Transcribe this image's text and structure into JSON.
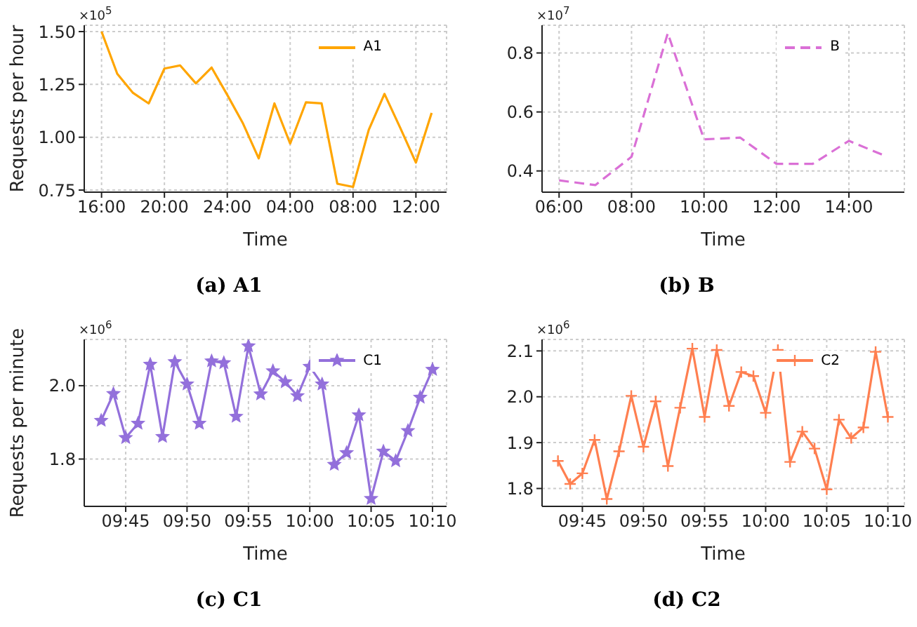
{
  "chart_data": [
    {
      "type": "line",
      "title": "(a) A1",
      "xlabel": "Time",
      "ylabel": "Requests per hour",
      "annotations": [
        "×10$^{5}$"
      ],
      "x": [
        "--01-01T16:00",
        "--01-01T17:00",
        "--01-01T18:00",
        "--01-01T19:00",
        "--01-01T20:00",
        "--01-01T21:00",
        "--01-01T22:00",
        "--01-01T23:00",
        "--01-02T00:00",
        "--01-02T01:00",
        "--01-02T02:00",
        "--01-02T03:00",
        "--01-02T04:00",
        "--01-02T05:00",
        "--01-02T06:00",
        "--01-02T07:00",
        "--01-02T08:00",
        "--01-02T09:00",
        "--01-02T10:00",
        "--01-02T11:00",
        "--01-02T12:00",
        "--01-02T13:00"
      ],
      "series": [
        {
          "name": "A1",
          "color": "#ffa500",
          "values": [
            1.5,
            1.3,
            1.21,
            1.16,
            1.325,
            1.34,
            1.255,
            1.33,
            1.2,
            1.065,
            0.9,
            1.16,
            0.97,
            1.165,
            1.16,
            0.78,
            0.765,
            1.035,
            1.205,
            1.045,
            0.88,
            1.115
          ]
        }
      ],
      "xlim": [
        "--01-01T14:54",
        "--01-02T13:57"
      ],
      "xticks": [
        {
          "value": "--01-01T16:00",
          "label": "16:00"
        },
        {
          "value": "--01-01T20:00",
          "label": "20:00"
        },
        {
          "value": "--01-02T00:00",
          "label": "24:00"
        },
        {
          "value": "--01-02T04:00",
          "label": "04:00"
        },
        {
          "value": "--01-02T08:00",
          "label": "08:00"
        },
        {
          "value": "--01-02T12:00",
          "label": "12:00"
        }
      ],
      "ylim": [
        0.74,
        1.53
      ],
      "yticks": [
        {
          "value": 0.75,
          "label": "0.75"
        },
        {
          "value": 1.0,
          "label": "1.00"
        },
        {
          "value": 1.25,
          "label": "1.25"
        },
        {
          "value": 1.5,
          "label": "1.50"
        }
      ],
      "grid": true,
      "legend": "top right",
      "marker": "none",
      "line_style": "solid"
    },
    {
      "type": "line",
      "title": "(b) B",
      "xlabel": "Time",
      "annotations": [
        "×10$^{7}$"
      ],
      "x": [
        6,
        7,
        8,
        9,
        10,
        11,
        12,
        13,
        14,
        15
      ],
      "series": [
        {
          "name": "B",
          "color": "#da70d6",
          "values": [
            0.368,
            0.352,
            0.448,
            0.867,
            0.507,
            0.513,
            0.424,
            0.424,
            0.502,
            0.451
          ]
        }
      ],
      "xlim": [
        5.53,
        15.53
      ],
      "xticks": [
        {
          "value": 6,
          "label": "06:00"
        },
        {
          "value": 8,
          "label": "08:00"
        },
        {
          "value": 10,
          "label": "10:00"
        },
        {
          "value": 12,
          "label": "12:00"
        },
        {
          "value": 14,
          "label": "14:00"
        }
      ],
      "ylim": [
        0.328,
        0.894
      ],
      "yticks": [
        0.4,
        0.6,
        0.8
      ],
      "grid": true,
      "legend": "top right",
      "marker": "none",
      "line_style": "dashed"
    },
    {
      "type": "line",
      "title": "(c) C1",
      "xlabel": "Time",
      "ylabel": "Requests per minute",
      "annotations": [
        "×10$^{6}$"
      ],
      "x": [
        9.7167,
        9.7333,
        9.75,
        9.7667,
        9.7833,
        9.8,
        9.8167,
        9.8333,
        9.85,
        9.8667,
        9.8833,
        9.9,
        9.9167,
        9.9333,
        9.95,
        9.9667,
        9.9833,
        10,
        10.0167,
        10.0333,
        10.05,
        10.0667,
        10.0833,
        10.1,
        10.1167,
        10.1333,
        10.15,
        10.1667
      ],
      "series": [
        {
          "name": "C1",
          "color": "#9370db",
          "values": [
            1.905,
            1.978,
            1.858,
            1.897,
            2.058,
            1.861,
            2.065,
            2.004,
            1.897,
            2.067,
            2.062,
            1.916,
            2.108,
            1.977,
            2.04,
            2.01,
            1.972,
            2.052,
            2.004,
            1.785,
            1.817,
            1.92,
            1.692,
            1.821,
            1.795,
            1.877,
            1.968,
            2.044
          ]
        }
      ],
      "xlim": [
        9.6937,
        10.1858
      ],
      "xticks": [
        {
          "value": 9.75,
          "label": "09:45"
        },
        {
          "value": 9.8333,
          "label": "09:50"
        },
        {
          "value": 9.9167,
          "label": "09:55"
        },
        {
          "value": 10,
          "label": "10:00"
        },
        {
          "value": 10.0833,
          "label": "10:05"
        },
        {
          "value": 10.1667,
          "label": "10:10"
        }
      ],
      "ylim": [
        1.671,
        2.126
      ],
      "yticks": [
        1.8,
        {
          "value": 2.0,
          "label": "2.0"
        }
      ],
      "grid": true,
      "legend": "top right",
      "marker": "star",
      "line_style": "solid"
    },
    {
      "type": "line",
      "title": "(d) C2",
      "xlabel": "Time",
      "annotations": [
        "×10$^{6}$"
      ],
      "x": [
        9.7167,
        9.7333,
        9.75,
        9.7667,
        9.7833,
        9.8,
        9.8167,
        9.8333,
        9.85,
        9.8667,
        9.8833,
        9.9,
        9.9167,
        9.9333,
        9.95,
        9.9667,
        9.9833,
        10,
        10.0167,
        10.0333,
        10.05,
        10.0667,
        10.0833,
        10.1,
        10.1167,
        10.1333,
        10.15,
        10.1667
      ],
      "series": [
        {
          "name": "C2",
          "color": "#ff7f50",
          "values": [
            1.86,
            1.81,
            1.833,
            1.906,
            1.777,
            1.881,
            2.002,
            1.891,
            1.99,
            1.849,
            1.976,
            2.105,
            1.956,
            2.102,
            1.98,
            2.054,
            2.045,
            1.965,
            2.102,
            1.858,
            1.924,
            1.887,
            1.798,
            1.95,
            1.91,
            1.933,
            2.098,
            1.956
          ]
        }
      ],
      "xlim": [
        9.695,
        10.1892
      ],
      "xticks": [
        {
          "value": 9.75,
          "label": "09:45"
        },
        {
          "value": 9.8333,
          "label": "09:50"
        },
        {
          "value": 9.9167,
          "label": "09:55"
        },
        {
          "value": 10,
          "label": "10:00"
        },
        {
          "value": 10.0833,
          "label": "10:05"
        },
        {
          "value": 10.1667,
          "label": "10:10"
        }
      ],
      "ylim": [
        1.761,
        2.125
      ],
      "yticks": [
        1.8,
        1.9,
        {
          "value": 2.0,
          "label": "2.0"
        },
        2.1
      ],
      "grid": true,
      "legend": "top right",
      "marker": "cross",
      "line_style": "solid"
    }
  ]
}
